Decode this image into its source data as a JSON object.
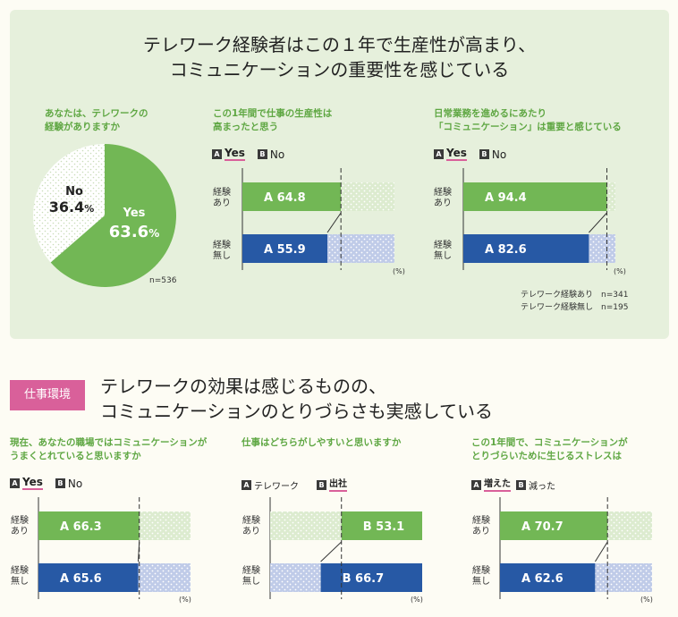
{
  "header": {
    "title_line1": "テレワーク経験者はこの１年で生産性が高まり、",
    "title_line2": "コミュニケーションの重要性を感じている"
  },
  "section2": {
    "tag": "仕事環境",
    "title_line1": "テレワークの効果は感じるものの、",
    "title_line2": "コミュニケーションのとりづらさも実感している"
  },
  "colors": {
    "green": "#72b755",
    "blue": "#2759a5",
    "light_green": "#d4e8c4",
    "light_blue": "#b9c7e6",
    "pink": "#d9609a"
  },
  "pie": {
    "question_line1": "あなたは、テレワークの",
    "question_line2": "経験がありますか",
    "yes_label": "Yes",
    "yes_value": "63.6",
    "yes_pct_sign": "%",
    "no_label": "No",
    "no_value": "36.4",
    "no_pct_sign": "%",
    "n_label": "n=536",
    "chart_data": {
      "type": "pie",
      "slices": [
        {
          "label": "Yes",
          "value": 63.6
        },
        {
          "label": "No",
          "value": 36.4
        }
      ]
    }
  },
  "common": {
    "row1_label": "経験\nあり",
    "row2_label": "経験\n無し",
    "pct_unit": "(%)",
    "letter_a": "A",
    "letter_b": "B",
    "opt_yes": "Yes",
    "opt_no": "No"
  },
  "chart1": {
    "question_line1": "この1年間で仕事の生産性は",
    "question_line2": "高まったと思う",
    "chart_data": {
      "type": "bar",
      "categories": [
        "経験あり",
        "経験無し"
      ],
      "series": [
        {
          "name": "Yes",
          "values": [
            64.8,
            55.9
          ]
        },
        {
          "name": "No",
          "values": [
            35.2,
            44.1
          ]
        }
      ],
      "ylim": [
        0,
        100
      ]
    }
  },
  "chart2": {
    "question_line1": "日常業務を進めるにあたり",
    "question_line2": "「コミュニケーション」は重要と感じている",
    "note_line1": "テレワーク経験あり　n=341",
    "note_line2": "テレワーク経験無し　n=195",
    "chart_data": {
      "type": "bar",
      "categories": [
        "経験あり",
        "経験無し"
      ],
      "series": [
        {
          "name": "Yes",
          "values": [
            94.4,
            82.6
          ]
        },
        {
          "name": "No",
          "values": [
            5.6,
            17.4
          ]
        }
      ],
      "ylim": [
        0,
        100
      ]
    }
  },
  "chart3": {
    "question_line1": "現在、あなたの職場ではコミュニケーションが",
    "question_line2": "うまくとれていると思いますか",
    "chart_data": {
      "type": "bar",
      "categories": [
        "経験あり",
        "経験無し"
      ],
      "series": [
        {
          "name": "Yes",
          "values": [
            66.3,
            65.6
          ]
        },
        {
          "name": "No",
          "values": [
            33.7,
            34.4
          ]
        }
      ],
      "ylim": [
        0,
        100
      ]
    }
  },
  "chart4": {
    "question_line1": "仕事はどちらがしやすいと思いますか",
    "opt_a": "テレワーク",
    "opt_b": "出社",
    "chart_data": {
      "type": "bar",
      "categories": [
        "経験あり",
        "経験無し"
      ],
      "series": [
        {
          "name": "テレワーク",
          "values": [
            46.9,
            33.3
          ]
        },
        {
          "name": "出社",
          "values": [
            53.1,
            66.7
          ]
        }
      ],
      "ylim": [
        0,
        100
      ]
    }
  },
  "chart5": {
    "question_line1": "この1年間で、コミュニケーションが",
    "question_line2": "とりづらいために生じるストレスは",
    "opt_a": "増えた",
    "opt_b": "減った",
    "chart_data": {
      "type": "bar",
      "categories": [
        "経験あり",
        "経験無し"
      ],
      "series": [
        {
          "name": "増えた",
          "values": [
            70.7,
            62.6
          ]
        },
        {
          "name": "減った",
          "values": [
            29.3,
            37.4
          ]
        }
      ],
      "ylim": [
        0,
        100
      ]
    }
  }
}
